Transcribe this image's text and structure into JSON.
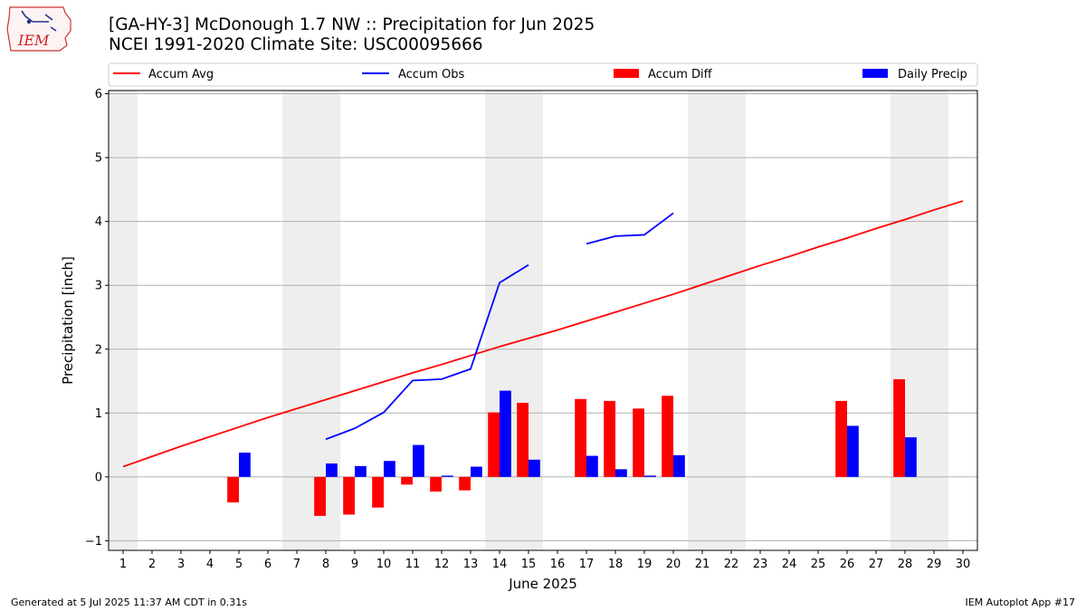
{
  "header": {
    "title_line1": "[GA-HY-3] McDonough 1.7 NW :: Precipitation for Jun 2025",
    "title_line2": "NCEI 1991-2020 Climate Site: USC00095666",
    "logo_text": "IEM"
  },
  "footer": {
    "generated": "Generated at 5 Jul 2025 11:37 AM CDT in 0.31s",
    "app": "IEM Autoplot App #17"
  },
  "colors": {
    "avg": "#ff0000",
    "obs": "#0000ff",
    "diff": "#ff0000",
    "daily": "#0000ff",
    "weekend_shade": "#eeeeee",
    "grid": "#b0b0b0"
  },
  "chart_data": {
    "type": "bar",
    "xlabel": "June 2025",
    "ylabel": "Precipitation [inch]",
    "xlim": [
      0.5,
      30.5
    ],
    "ylim": [
      -1.15,
      6.05
    ],
    "yticks": [
      -1,
      0,
      1,
      2,
      3,
      4,
      5,
      6
    ],
    "grid": true,
    "legend_placement": "top, above plot",
    "legend": [
      "Accum Avg",
      "Accum Obs",
      "Accum Diff",
      "Daily Precip"
    ],
    "shaded_days": [
      1,
      7,
      8,
      14,
      15,
      21,
      22,
      28,
      29
    ],
    "days": [
      1,
      2,
      3,
      4,
      5,
      6,
      7,
      8,
      9,
      10,
      11,
      12,
      13,
      14,
      15,
      16,
      17,
      18,
      19,
      20,
      21,
      22,
      23,
      24,
      25,
      26,
      27,
      28,
      29,
      30
    ],
    "series": [
      {
        "name": "Accum Avg",
        "kind": "line",
        "values": [
          0.16,
          0.32,
          0.48,
          0.63,
          0.78,
          0.93,
          1.07,
          1.21,
          1.35,
          1.49,
          1.63,
          1.76,
          1.9,
          2.04,
          2.17,
          2.3,
          2.44,
          2.58,
          2.72,
          2.86,
          3.01,
          3.16,
          3.31,
          3.45,
          3.6,
          3.74,
          3.89,
          4.03,
          4.18,
          4.32
        ]
      },
      {
        "name": "Accum Obs",
        "kind": "line",
        "values": [
          null,
          null,
          null,
          null,
          null,
          null,
          null,
          0.59,
          0.76,
          1.01,
          1.51,
          1.53,
          1.69,
          3.04,
          3.32,
          null,
          3.65,
          3.77,
          3.79,
          4.13,
          null,
          null,
          null,
          null,
          null,
          null,
          null,
          null,
          null,
          null
        ]
      },
      {
        "name": "Accum Diff",
        "kind": "bar",
        "values": [
          null,
          null,
          null,
          null,
          -0.4,
          null,
          null,
          -0.61,
          -0.59,
          -0.48,
          -0.12,
          -0.23,
          -0.21,
          1.01,
          1.16,
          null,
          1.22,
          1.19,
          1.07,
          1.27,
          null,
          null,
          null,
          null,
          null,
          1.19,
          null,
          1.53,
          null,
          null
        ]
      },
      {
        "name": "Daily Precip",
        "kind": "bar",
        "values": [
          null,
          null,
          null,
          null,
          0.38,
          null,
          null,
          0.21,
          0.17,
          0.25,
          0.5,
          0.02,
          0.16,
          1.35,
          0.27,
          null,
          0.33,
          0.12,
          0.02,
          0.34,
          null,
          null,
          null,
          null,
          null,
          0.8,
          null,
          0.62,
          null,
          null
        ]
      }
    ]
  }
}
